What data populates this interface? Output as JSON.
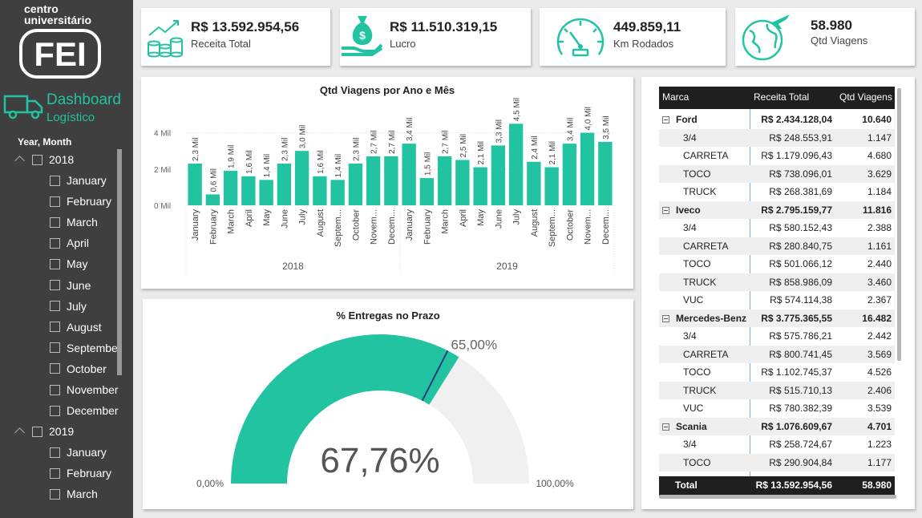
{
  "sidebar": {
    "logo_line1": "centro",
    "logo_line2": "universitário",
    "logo_word": "FEI",
    "dashboard_line1": "Dashboard",
    "dashboard_line2": "Logístico",
    "slicer_title": "Year, Month",
    "years": [
      {
        "label": "2018",
        "months": [
          "January",
          "February",
          "March",
          "April",
          "May",
          "June",
          "July",
          "August",
          "September",
          "October",
          "November",
          "December"
        ]
      },
      {
        "label": "2019",
        "months": [
          "January",
          "February",
          "March"
        ]
      }
    ]
  },
  "kpis": [
    {
      "value": "R$ 13.592.954,56",
      "label": "Receita Total",
      "icon": "revenue-coins-icon"
    },
    {
      "value": "R$ 11.510.319,15",
      "label": "Lucro",
      "icon": "money-bag-hand-icon"
    },
    {
      "value": "449.859,11",
      "label": "Km Rodados",
      "icon": "speedometer-icon"
    },
    {
      "value": "58.980",
      "label": "Qtd Viagens",
      "icon": "globe-plane-icon"
    }
  ],
  "chart_data": [
    {
      "type": "bar",
      "title": "Qtd Viagens por Ano e Mês",
      "color": "#22c3a0",
      "y_ticks": [
        "0 Mil",
        "2 Mil",
        "4 Mil"
      ],
      "ylim": [
        0,
        5000
      ],
      "groups": [
        {
          "label": "2018",
          "categories": [
            "January",
            "February",
            "March",
            "April",
            "May",
            "June",
            "July",
            "August",
            "Septem...",
            "October",
            "Novem...",
            "Decem..."
          ],
          "values": [
            2300,
            600,
            1900,
            1600,
            1400,
            2300,
            3000,
            1600,
            1400,
            2300,
            2700,
            2700
          ],
          "data_labels": [
            "2,3 Mil",
            "0,6 Mil",
            "1,9 Mil",
            "1,6 Mil",
            "1,4 Mil",
            "2,3 Mil",
            "3,0 Mil",
            "1,6 Mil",
            "1,4 Mil",
            "2,3 Mil",
            "2,7 Mil",
            "2,7 Mil"
          ]
        },
        {
          "label": "2019",
          "categories": [
            "January",
            "February",
            "March",
            "April",
            "May",
            "June",
            "July",
            "August",
            "Septem...",
            "October",
            "Novem...",
            "Decem..."
          ],
          "values": [
            3400,
            1500,
            2700,
            2500,
            2100,
            3300,
            4500,
            2400,
            2100,
            3400,
            4000,
            3500
          ],
          "data_labels": [
            "3,4 Mil",
            "1,5 Mil",
            "2,7 Mil",
            "2,5 Mil",
            "2,1 Mil",
            "3,3 Mil",
            "4,5 Mil",
            "2,4 Mil",
            "2,1 Mil",
            "3,4 Mil",
            "4,0 Mil",
            "3,5 Mil"
          ]
        }
      ]
    },
    {
      "type": "gauge",
      "title": "% Entregas no Prazo",
      "value": 67.76,
      "value_label": "67,76%",
      "target": 65,
      "target_label": "65,00%",
      "min_label": "0,00%",
      "max_label": "100,00%",
      "fill_color": "#22c3a0",
      "track_color": "#f0f0f0",
      "target_color": "#1f3d7a"
    }
  ],
  "table": {
    "headers": [
      "Marca",
      "Receita Total",
      "Qtd Viagens"
    ],
    "rows": [
      {
        "level": 0,
        "name": "Ford",
        "receita": "R$ 2.434.128,04",
        "qtd": "10.640"
      },
      {
        "level": 1,
        "name": "3/4",
        "receita": "R$ 248.553,91",
        "qtd": "1.147"
      },
      {
        "level": 1,
        "name": "CARRETA",
        "receita": "R$ 1.179.096,43",
        "qtd": "4.680"
      },
      {
        "level": 1,
        "name": "TOCO",
        "receita": "R$ 738.096,01",
        "qtd": "3.629"
      },
      {
        "level": 1,
        "name": "TRUCK",
        "receita": "R$ 268.381,69",
        "qtd": "1.184"
      },
      {
        "level": 0,
        "name": "Iveco",
        "receita": "R$ 2.795.159,77",
        "qtd": "11.816"
      },
      {
        "level": 1,
        "name": "3/4",
        "receita": "R$ 580.152,43",
        "qtd": "2.388"
      },
      {
        "level": 1,
        "name": "CARRETA",
        "receita": "R$ 280.840,75",
        "qtd": "1.161"
      },
      {
        "level": 1,
        "name": "TOCO",
        "receita": "R$ 501.066,12",
        "qtd": "2.440"
      },
      {
        "level": 1,
        "name": "TRUCK",
        "receita": "R$ 858.986,09",
        "qtd": "3.460"
      },
      {
        "level": 1,
        "name": "VUC",
        "receita": "R$ 574.114,38",
        "qtd": "2.367"
      },
      {
        "level": 0,
        "name": "Mercedes-Benz",
        "receita": "R$ 3.775.365,55",
        "qtd": "16.482"
      },
      {
        "level": 1,
        "name": "3/4",
        "receita": "R$ 575.786,21",
        "qtd": "2.442"
      },
      {
        "level": 1,
        "name": "CARRETA",
        "receita": "R$ 800.741,45",
        "qtd": "3.569"
      },
      {
        "level": 1,
        "name": "TOCO",
        "receita": "R$ 1.102.745,37",
        "qtd": "4.526"
      },
      {
        "level": 1,
        "name": "TRUCK",
        "receita": "R$ 515.710,13",
        "qtd": "2.406"
      },
      {
        "level": 1,
        "name": "VUC",
        "receita": "R$ 780.382,39",
        "qtd": "3.539"
      },
      {
        "level": 0,
        "name": "Scania",
        "receita": "R$ 1.076.609,67",
        "qtd": "4.701"
      },
      {
        "level": 1,
        "name": "3/4",
        "receita": "R$ 258.724,67",
        "qtd": "1.223"
      },
      {
        "level": 1,
        "name": "TOCO",
        "receita": "R$ 290.904,84",
        "qtd": "1.177"
      }
    ],
    "total": {
      "name": "Total",
      "receita": "R$ 13.592.954,56",
      "qtd": "58.980"
    }
  }
}
